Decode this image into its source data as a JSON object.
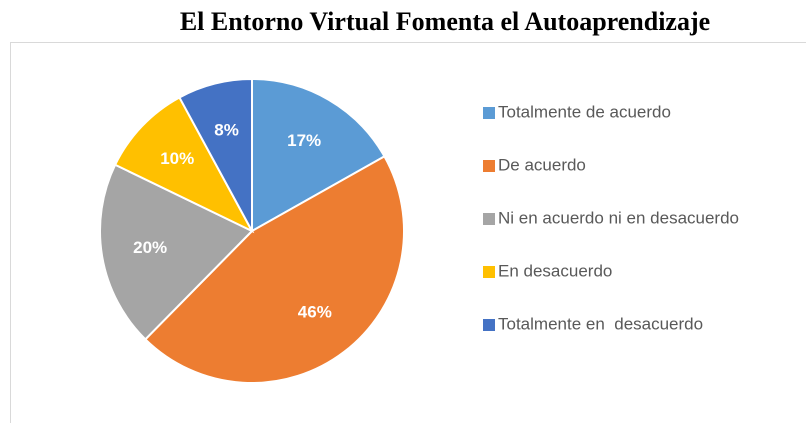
{
  "chart_data": {
    "type": "pie",
    "title": "El Entorno Virtual Fomenta el Autoaprendizaje",
    "categories": [
      "Totalmente de acuerdo",
      "De acuerdo",
      "Ni en acuerdo ni en desacuerdo",
      "En desacuerdo",
      "Totalmente en  desacuerdo"
    ],
    "values": [
      17,
      46,
      20,
      10,
      8
    ],
    "value_labels": [
      "17%",
      "46%",
      "20%",
      "10%",
      "8%"
    ],
    "colors": [
      "#5b9bd5",
      "#ed7d31",
      "#a5a5a5",
      "#ffc000",
      "#4472c4"
    ],
    "legend": "right"
  }
}
